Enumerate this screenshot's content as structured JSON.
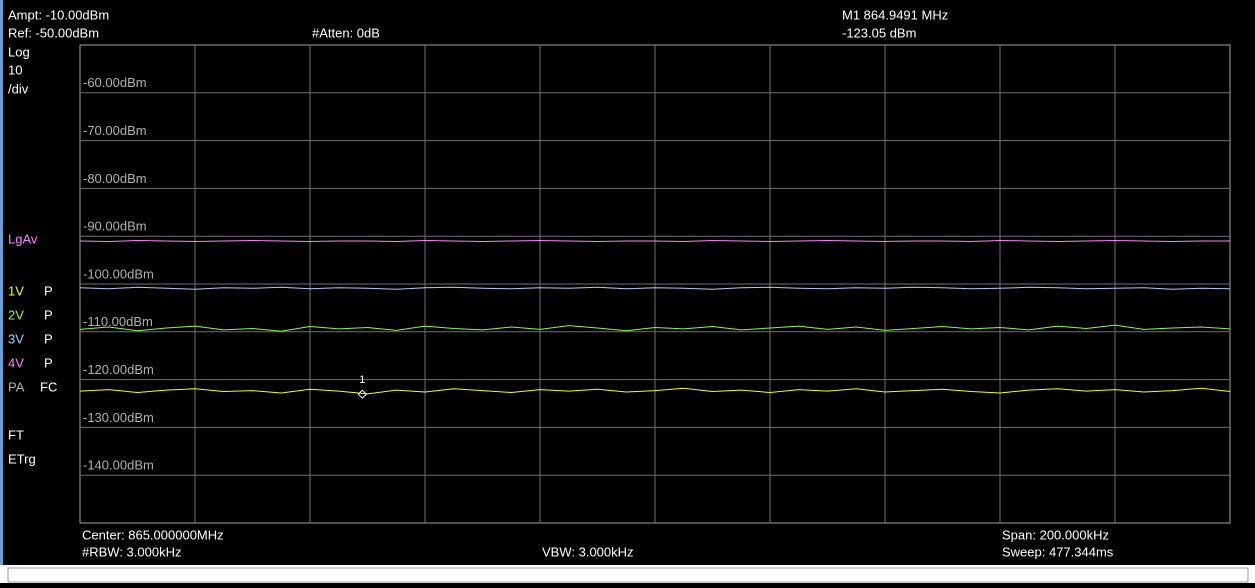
{
  "header": {
    "ampt": "Ampt: -10.00dBm",
    "ref": "Ref: -50.00dBm",
    "atten": "#Atten: 0dB",
    "marker_freq": "M1 864.9491 MHz",
    "marker_level": "-123.05 dBm"
  },
  "sidebar": {
    "scale": [
      "Log",
      "10",
      "/div"
    ],
    "detector": "LgAv",
    "trace_mode": [
      "P",
      "P",
      "P",
      "P"
    ],
    "pa": "PA",
    "fc": "FC",
    "ft": "FT",
    "etrg": "ETrg"
  },
  "footer": {
    "center": "Center: 865.000000MHz",
    "rbw": "#RBW: 3.000kHz",
    "vbw": "VBW: 3.000kHz",
    "span": "Span: 200.000kHz",
    "sweep": "Sweep: 477.344ms"
  },
  "chart_data": {
    "type": "line",
    "x": [
      864.9,
      864.905,
      864.91,
      864.915,
      864.92,
      864.925,
      864.93,
      864.935,
      864.94,
      864.945,
      864.95,
      864.955,
      864.96,
      864.965,
      864.97,
      864.975,
      864.98,
      864.985,
      864.99,
      864.995,
      865.0,
      865.005,
      865.01,
      865.015,
      865.02,
      865.025,
      865.03,
      865.035,
      865.04,
      865.045,
      865.05,
      865.055,
      865.06,
      865.065,
      865.07,
      865.075,
      865.08,
      865.085,
      865.09,
      865.095,
      865.1
    ],
    "xlim": [
      864.9,
      865.1
    ],
    "ylim": [
      -150,
      -50
    ],
    "yticks": [
      {
        "value": -60,
        "label": "-60.00dBm"
      },
      {
        "value": -70,
        "label": "-70.00dBm"
      },
      {
        "value": -80,
        "label": "-80.00dBm"
      },
      {
        "value": -90,
        "label": "-90.00dBm"
      },
      {
        "value": -100,
        "label": "-100.00dBm"
      },
      {
        "value": -110,
        "label": "-110.00dBm"
      },
      {
        "value": -120,
        "label": "-120.00dBm"
      },
      {
        "value": -130,
        "label": "-130.00dBm"
      },
      {
        "value": -140,
        "label": "-140.00dBm"
      }
    ],
    "grid": true,
    "series": [
      {
        "name": "1V",
        "color": "#ffff00",
        "values": [
          -122.4,
          -122.1,
          -122.7,
          -122.2,
          -121.9,
          -122.5,
          -122.3,
          -122.8,
          -122.0,
          -122.4,
          -123.0,
          -122.2,
          -122.6,
          -121.9,
          -122.3,
          -122.7,
          -122.1,
          -122.4,
          -122.0,
          -122.6,
          -122.3,
          -121.8,
          -122.5,
          -122.2,
          -122.7,
          -122.1,
          -122.4,
          -121.9,
          -122.6,
          -122.3,
          -122.0,
          -122.5,
          -122.8,
          -122.2,
          -121.9,
          -122.4,
          -122.1,
          -122.6,
          -122.3,
          -121.8,
          -122.5
        ]
      },
      {
        "name": "2V",
        "color": "#80ff40",
        "values": [
          -109.5,
          -109.0,
          -109.8,
          -109.2,
          -108.8,
          -109.6,
          -109.3,
          -109.9,
          -108.9,
          -109.4,
          -109.1,
          -109.7,
          -108.8,
          -109.3,
          -109.6,
          -109.0,
          -109.5,
          -108.7,
          -109.2,
          -109.8,
          -109.1,
          -109.4,
          -108.9,
          -109.6,
          -109.2,
          -108.8,
          -109.5,
          -109.0,
          -109.7,
          -109.3,
          -108.9,
          -109.4,
          -109.1,
          -109.6,
          -108.8,
          -109.3,
          -108.6,
          -109.5,
          -109.2,
          -109.0,
          -109.4
        ]
      },
      {
        "name": "3V",
        "color": "#a8ccff",
        "values": [
          -100.8,
          -101.0,
          -100.7,
          -100.9,
          -101.1,
          -100.8,
          -100.9,
          -100.7,
          -101.0,
          -100.8,
          -100.9,
          -101.1,
          -100.8,
          -100.7,
          -100.9,
          -101.0,
          -100.8,
          -100.9,
          -100.7,
          -101.0,
          -100.8,
          -100.9,
          -101.1,
          -100.8,
          -100.7,
          -100.9,
          -101.0,
          -100.8,
          -100.9,
          -100.7,
          -100.8,
          -101.0,
          -100.9,
          -100.7,
          -100.8,
          -101.0,
          -100.9,
          -100.8,
          -101.1,
          -100.9,
          -101.0
        ]
      },
      {
        "name": "4V",
        "color": "#ff80ff",
        "values": [
          -91.0,
          -91.1,
          -90.9,
          -91.0,
          -91.1,
          -91.0,
          -90.9,
          -91.0,
          -91.1,
          -91.0,
          -91.0,
          -91.1,
          -90.9,
          -91.0,
          -91.1,
          -91.0,
          -90.9,
          -91.0,
          -91.1,
          -91.0,
          -91.0,
          -91.1,
          -90.9,
          -91.0,
          -91.1,
          -91.0,
          -90.9,
          -91.0,
          -91.1,
          -91.0,
          -91.0,
          -91.1,
          -90.9,
          -91.0,
          -91.1,
          -91.0,
          -90.9,
          -91.0,
          -91.1,
          -91.0,
          -91.0
        ]
      }
    ],
    "marker": {
      "label": "1",
      "x": 864.9491,
      "y": -123.05,
      "color": "#ffffff"
    }
  }
}
